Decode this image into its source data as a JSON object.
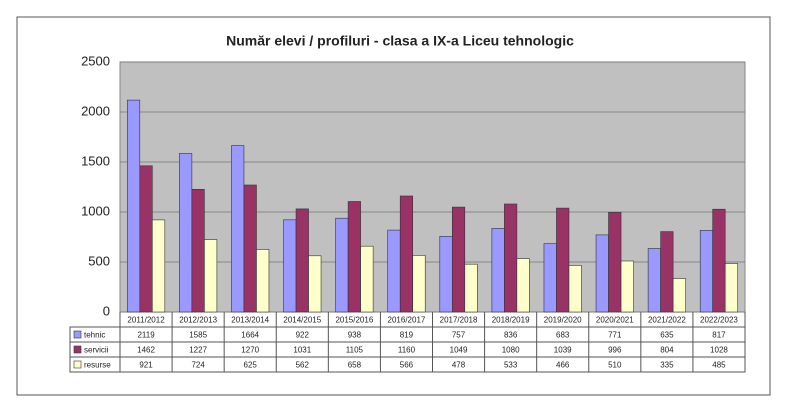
{
  "chart_data": {
    "type": "bar",
    "title": "Număr elevi / profiluri - clasa a IX-a Liceu tehnologic",
    "categories": [
      "2011/2012",
      "2012/2013",
      "2013/2014",
      "2014/2015",
      "2015/2016",
      "2016/2017",
      "2017/2018",
      "2018/2019",
      "2019/2020",
      "2020/2021",
      "2021/2022",
      "2022/2023"
    ],
    "series": [
      {
        "name": "tehnic",
        "color": "#9999ff",
        "values": [
          2119,
          1585,
          1664,
          922,
          938,
          819,
          757,
          836,
          683,
          771,
          635,
          817
        ]
      },
      {
        "name": "servicii",
        "color": "#993366",
        "values": [
          1462,
          1227,
          1270,
          1031,
          1105,
          1160,
          1049,
          1080,
          1039,
          996,
          804,
          1028
        ]
      },
      {
        "name": "resurse",
        "color": "#ffffcc",
        "values": [
          921,
          724,
          625,
          562,
          658,
          566,
          478,
          533,
          466,
          510,
          335,
          485
        ]
      }
    ],
    "ylim": [
      0,
      2500
    ],
    "yticks": [
      0,
      500,
      1000,
      1500,
      2000,
      2500
    ],
    "grid": true
  }
}
